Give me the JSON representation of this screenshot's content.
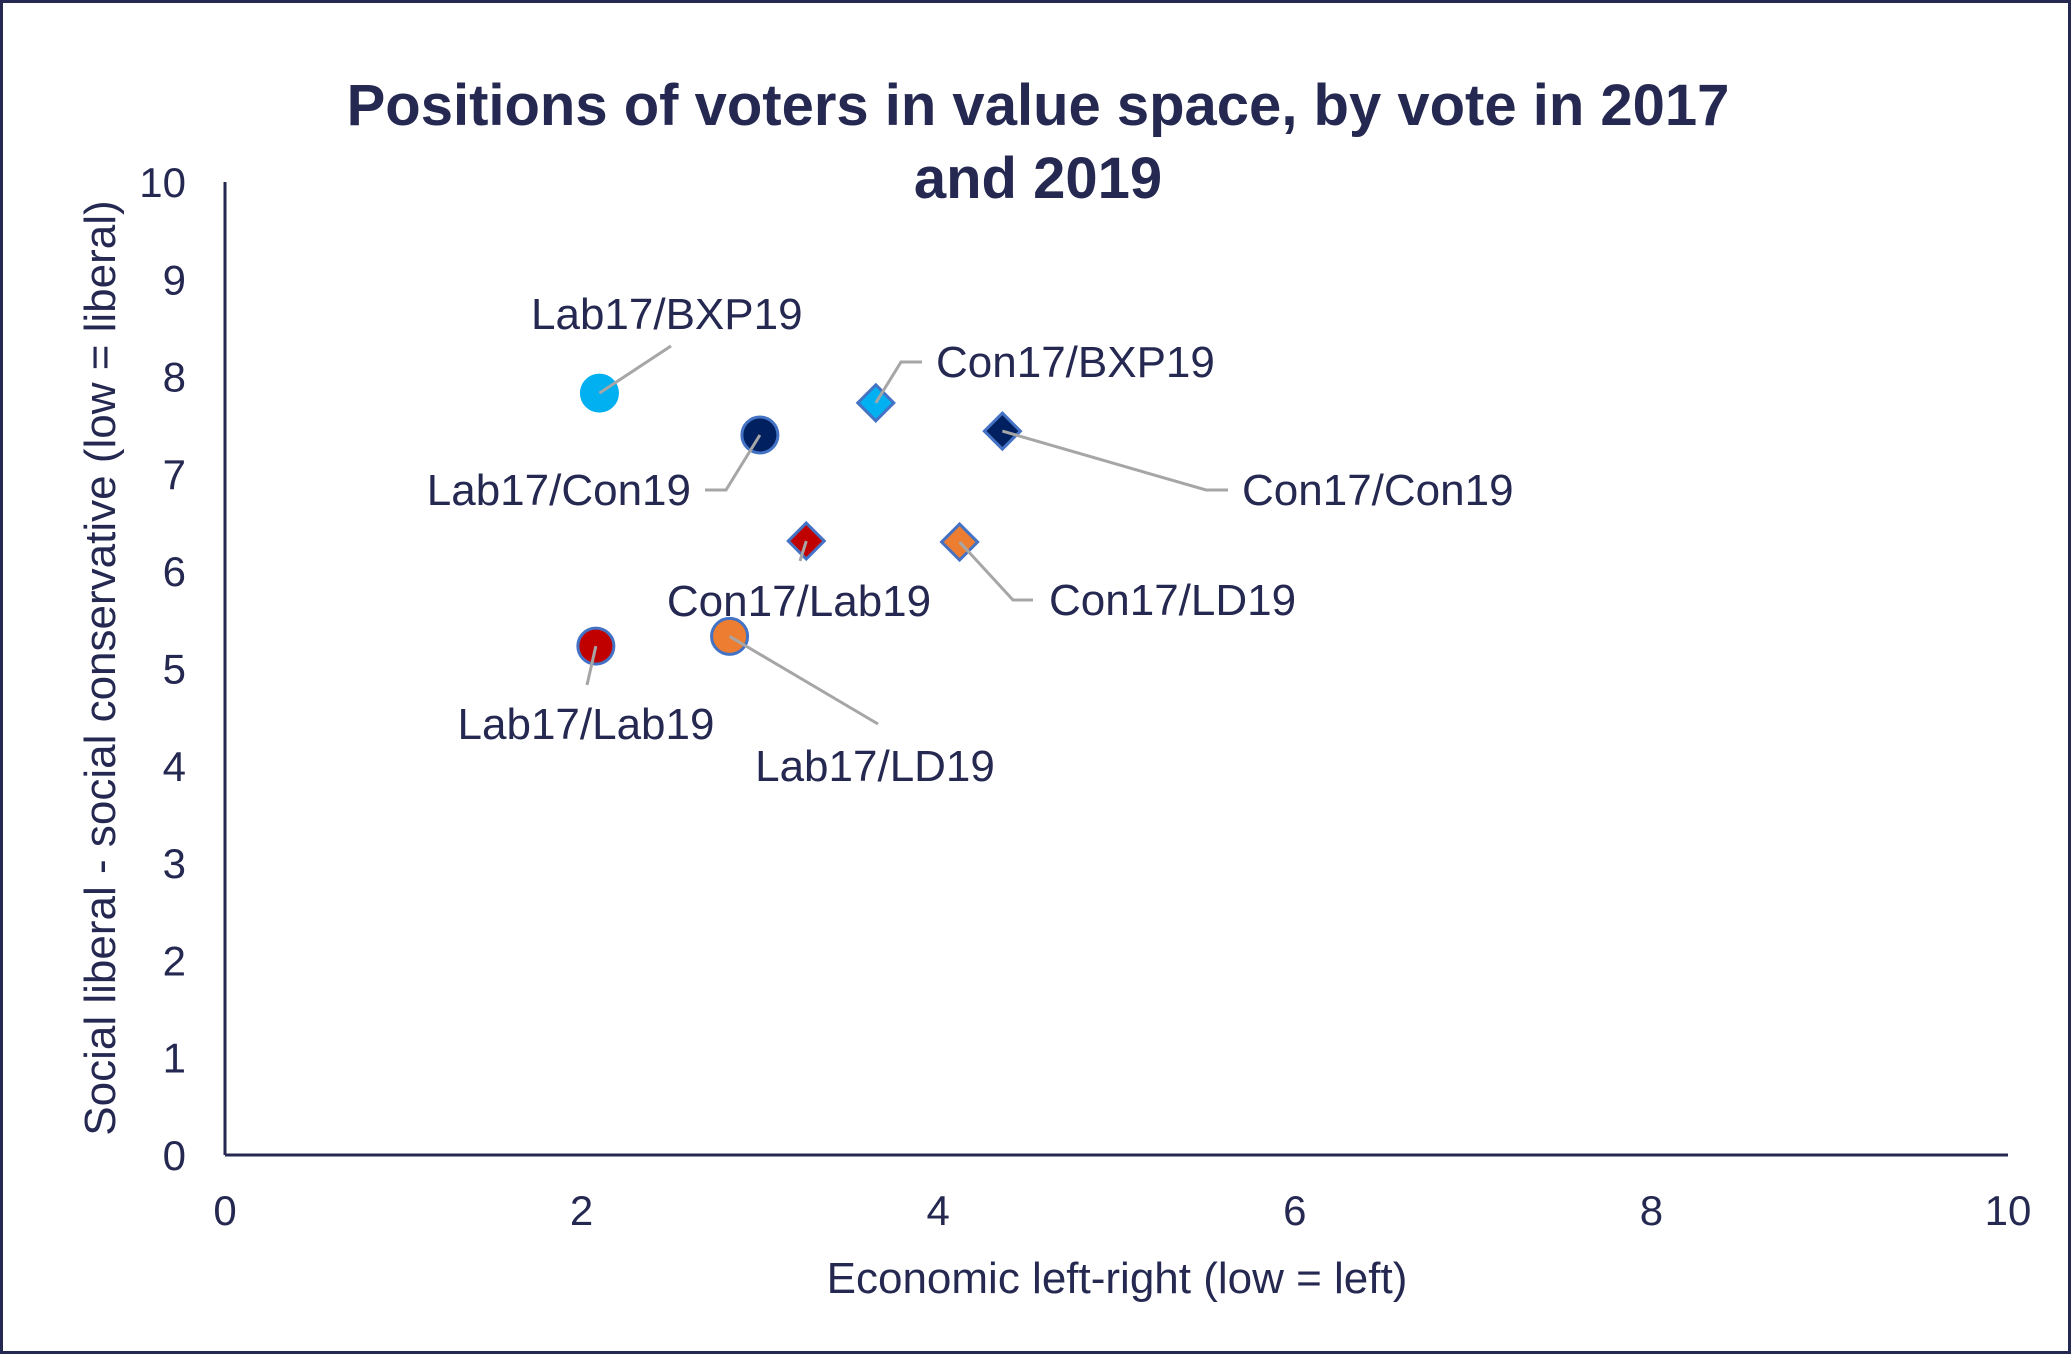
{
  "chart_data": {
    "type": "scatter",
    "title_lines": [
      "Positions of voters in value space, by vote in 2017",
      "and 2019"
    ],
    "title": "Positions of voters in value space, by vote in 2017 and 2019",
    "xlabel": "Economic left-right (low = left)",
    "ylabel": "Social liberal - social conservative (low = liberal)",
    "xlim": [
      0,
      10
    ],
    "ylim": [
      0,
      10
    ],
    "x_ticks": [
      0,
      2,
      4,
      6,
      8,
      10
    ],
    "y_ticks": [
      0,
      1,
      2,
      3,
      4,
      5,
      6,
      7,
      8,
      9,
      10
    ],
    "grid": false,
    "legend": "none",
    "points": [
      {
        "label": "Lab17/BXP19",
        "x": 2.1,
        "y": 7.83,
        "marker": "circle",
        "fill": "#00B0F0",
        "stroke": "#00B0F0"
      },
      {
        "label": "Lab17/Con19",
        "x": 3.0,
        "y": 7.4,
        "marker": "circle",
        "fill": "#002060",
        "stroke": "#4472C4"
      },
      {
        "label": "Con17/BXP19",
        "x": 3.65,
        "y": 7.73,
        "marker": "diamond",
        "fill": "#00B0F0",
        "stroke": "#4472C4"
      },
      {
        "label": "Con17/Con19",
        "x": 4.36,
        "y": 7.44,
        "marker": "diamond",
        "fill": "#002060",
        "stroke": "#4472C4"
      },
      {
        "label": "Con17/Lab19",
        "x": 3.26,
        "y": 6.31,
        "marker": "diamond",
        "fill": "#C00000",
        "stroke": "#4472C4"
      },
      {
        "label": "Con17/LD19",
        "x": 4.12,
        "y": 6.3,
        "marker": "diamond",
        "fill": "#ED7D31",
        "stroke": "#4472C4"
      },
      {
        "label": "Lab17/Lab19",
        "x": 2.08,
        "y": 5.23,
        "marker": "circle",
        "fill": "#C00000",
        "stroke": "#4472C4"
      },
      {
        "label": "Lab17/LD19",
        "x": 2.83,
        "y": 5.33,
        "marker": "circle",
        "fill": "#ED7D31",
        "stroke": "#4472C4"
      }
    ],
    "colors": {
      "text": "#252850",
      "axis": "#252850",
      "leader": "#A6A6A6"
    }
  }
}
